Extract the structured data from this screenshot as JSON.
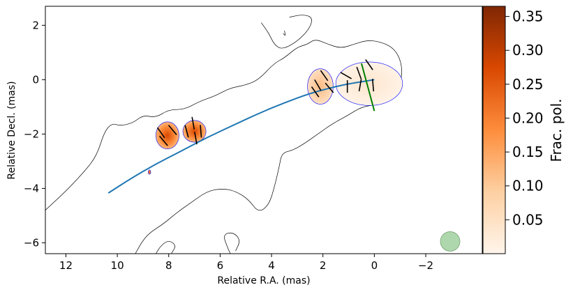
{
  "chart_data": {
    "type": "contour-polarization-map",
    "xlabel": "Relative R.A. (mas)",
    "ylabel": "Relative Decl. (mas)",
    "xlim": [
      12.8,
      -4.2
    ],
    "ylim": [
      -6.4,
      2.7
    ],
    "xticks": [
      12,
      10,
      8,
      6,
      4,
      2,
      0,
      -2
    ],
    "xtick_labels": [
      "12",
      "10",
      "8",
      "6",
      "4",
      "2",
      "0",
      "−2"
    ],
    "yticks": [
      2,
      0,
      -2,
      -4,
      -6
    ],
    "ytick_labels": [
      "2",
      "0",
      "−2",
      "−4",
      "−6"
    ],
    "colorbar": {
      "label": "Frac. pol.",
      "range": [
        0.0,
        0.365
      ],
      "ticks": [
        0.05,
        0.1,
        0.15,
        0.2,
        0.25,
        0.3,
        0.35
      ],
      "tick_labels": [
        "0.05",
        "0.10",
        "0.15",
        "0.20",
        "0.25",
        "0.30",
        "0.35"
      ],
      "colormap": "Oranges",
      "colors": [
        "#fff5eb",
        "#fdd0a2",
        "#fd8d3c",
        "#d94801",
        "#7f2704"
      ]
    },
    "outer_contour": [
      [
        12.8,
        -4.8
      ],
      [
        12.0,
        -4.1
      ],
      [
        11.3,
        -3.4
      ],
      [
        10.8,
        -2.8
      ],
      [
        10.5,
        -1.9
      ],
      [
        10.2,
        -1.6
      ],
      [
        9.9,
        -1.7
      ],
      [
        9.4,
        -1.6
      ],
      [
        9.0,
        -1.3
      ],
      [
        8.5,
        -1.4
      ],
      [
        8.0,
        -1.1
      ],
      [
        7.4,
        -1.1
      ],
      [
        6.8,
        -0.8
      ],
      [
        6.2,
        -0.6
      ],
      [
        5.6,
        -0.3
      ],
      [
        5.0,
        -0.2
      ],
      [
        4.5,
        0.0
      ],
      [
        3.9,
        0.6
      ],
      [
        3.5,
        0.8
      ],
      [
        3.0,
        1.2
      ],
      [
        2.6,
        1.3
      ],
      [
        2.3,
        1.5
      ],
      [
        1.8,
        1.3
      ],
      [
        1.3,
        1.15
      ],
      [
        0.8,
        1.3
      ],
      [
        0.3,
        1.45
      ],
      [
        -0.2,
        1.4
      ],
      [
        -0.7,
        1.2
      ],
      [
        -1.0,
        0.8
      ],
      [
        -1.1,
        0.2
      ],
      [
        -0.9,
        -0.4
      ],
      [
        -0.6,
        -0.7
      ],
      [
        -0.2,
        -0.9
      ],
      [
        0.5,
        -1.0
      ],
      [
        1.0,
        -1.3
      ],
      [
        1.6,
        -1.6
      ],
      [
        2.2,
        -2.0
      ],
      [
        2.8,
        -2.4
      ],
      [
        3.2,
        -2.6
      ],
      [
        3.6,
        -2.7
      ],
      [
        3.7,
        -3.2
      ],
      [
        3.9,
        -4.0
      ],
      [
        4.1,
        -4.6
      ],
      [
        4.5,
        -4.9
      ],
      [
        4.9,
        -4.4
      ],
      [
        5.4,
        -4.1
      ],
      [
        5.9,
        -4.0
      ],
      [
        6.5,
        -4.1
      ],
      [
        7.1,
        -4.5
      ],
      [
        7.7,
        -4.9
      ],
      [
        8.2,
        -5.3
      ],
      [
        8.7,
        -5.6
      ],
      [
        9.0,
        -5.9
      ],
      [
        9.3,
        -6.4
      ]
    ],
    "inner_contours": [
      [
        [
          4.4,
          2.1
        ],
        [
          4.1,
          1.7
        ],
        [
          3.9,
          1.3
        ],
        [
          3.6,
          1.1
        ],
        [
          3.0,
          1.4
        ],
        [
          2.5,
          1.9
        ],
        [
          2.4,
          2.3
        ],
        [
          2.8,
          2.4
        ],
        [
          3.3,
          2.3
        ]
      ],
      [
        [
          7.9,
          -6.4
        ],
        [
          7.7,
          -6.1
        ],
        [
          8.0,
          -5.9
        ],
        [
          8.3,
          -6.1
        ],
        [
          8.5,
          -6.4
        ]
      ],
      [
        [
          5.4,
          -6.3
        ],
        [
          5.2,
          -5.9
        ],
        [
          5.5,
          -5.6
        ],
        [
          5.9,
          -5.7
        ],
        [
          5.7,
          -6.2
        ],
        [
          5.6,
          -6.4
        ]
      ],
      [
        [
          3.5,
          1.8
        ],
        [
          3.45,
          1.6
        ],
        [
          3.55,
          1.7
        ]
      ]
    ],
    "polarized_regions": [
      {
        "cx": 0.2,
        "cy": -0.15,
        "rx": 1.3,
        "ry": 0.8,
        "peak": 0.06
      },
      {
        "cx": 2.1,
        "cy": -0.25,
        "rx": 0.5,
        "ry": 0.65,
        "peak": 0.18
      },
      {
        "cx": 7.0,
        "cy": -1.9,
        "rx": 0.45,
        "ry": 0.4,
        "peak": 0.25
      },
      {
        "cx": 8.05,
        "cy": -2.05,
        "rx": 0.45,
        "ry": 0.5,
        "peak": 0.3
      },
      {
        "cx": 8.75,
        "cy": -3.4,
        "rx": 0.05,
        "ry": 0.08,
        "peak": 0.22
      }
    ],
    "evpa_ticks": [
      {
        "x": 0.05,
        "y": -0.2,
        "angle": 5
      },
      {
        "x": 0.55,
        "y": -0.2,
        "angle": -10
      },
      {
        "x": 1.05,
        "y": -0.25,
        "angle": 0
      },
      {
        "x": 0.2,
        "y": 0.55,
        "angle": 35
      },
      {
        "x": 0.6,
        "y": 0.25,
        "angle": 20
      },
      {
        "x": 1.1,
        "y": 0.15,
        "angle": 60
      },
      {
        "x": 1.95,
        "y": 0.15,
        "angle": 35
      },
      {
        "x": 2.2,
        "y": -0.2,
        "angle": 30
      },
      {
        "x": 2.3,
        "y": -0.45,
        "angle": 35
      },
      {
        "x": 1.75,
        "y": -0.3,
        "angle": 40
      },
      {
        "x": 7.05,
        "y": -1.6,
        "angle": 10
      },
      {
        "x": 6.95,
        "y": -2.15,
        "angle": 10
      },
      {
        "x": 6.75,
        "y": -1.9,
        "angle": 5
      },
      {
        "x": 7.3,
        "y": -1.9,
        "angle": 15
      },
      {
        "x": 7.85,
        "y": -1.85,
        "angle": 40
      },
      {
        "x": 8.3,
        "y": -1.95,
        "angle": 35
      },
      {
        "x": 8.2,
        "y": -2.25,
        "angle": 40
      }
    ],
    "jet_curve": [
      [
        10.35,
        -4.17
      ],
      [
        9.5,
        -3.65
      ],
      [
        8.5,
        -3.1
      ],
      [
        7.5,
        -2.62
      ],
      [
        6.5,
        -2.12
      ],
      [
        5.5,
        -1.68
      ],
      [
        4.5,
        -1.24
      ],
      [
        3.5,
        -0.85
      ],
      [
        2.5,
        -0.5
      ],
      [
        1.5,
        -0.25
      ],
      [
        0.8,
        -0.12
      ],
      [
        0.0,
        0.0
      ]
    ],
    "green_line": [
      [
        0.5,
        0.6
      ],
      [
        0.0,
        -1.15
      ]
    ],
    "beam": {
      "x": -2.95,
      "y": -5.95,
      "r": 0.38
    },
    "colors": {
      "outer_contour": "#000000",
      "pol_contour": "#0000ff",
      "jet_curve": "#1f77b4",
      "green_line": "#008000",
      "beam_fill": "#a7d3a5",
      "evpa": "#000000"
    }
  }
}
